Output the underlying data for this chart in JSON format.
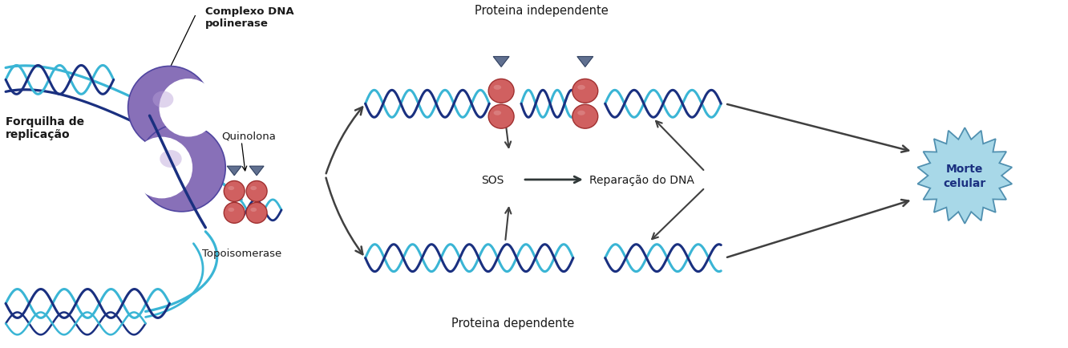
{
  "background_color": "#ffffff",
  "dna_light": "#3ab5d5",
  "dna_dark": "#1a3080",
  "protein_color": "#d06060",
  "protein_outline": "#a03030",
  "protein_highlight": "#e09090",
  "quinolone_color": "#607090",
  "quinolone_edge": "#304060",
  "helicase_color": "#8870b8",
  "helicase_edge": "#5045a0",
  "helicase_light": "#b8a0d8",
  "morte_bg": "#a8d8e8",
  "morte_edge": "#5090b0",
  "arrow_color": "#404040",
  "text_color": "#1a1a1a",
  "labels": {
    "complexo": "Complexo DNA\npolinerase",
    "forquilha": "Forquilha de\nreplicação",
    "quinolona": "Quinolona",
    "topoisomerase": "Topoisomerase",
    "proteina_ind": "Proteina independente",
    "proteina_dep": "Proteina dependente",
    "sos": "SOS",
    "reparacao": "Reparação do DNA",
    "morte": "Morte\ncelular"
  },
  "figsize": [
    13.32,
    4.35
  ],
  "dpi": 100
}
